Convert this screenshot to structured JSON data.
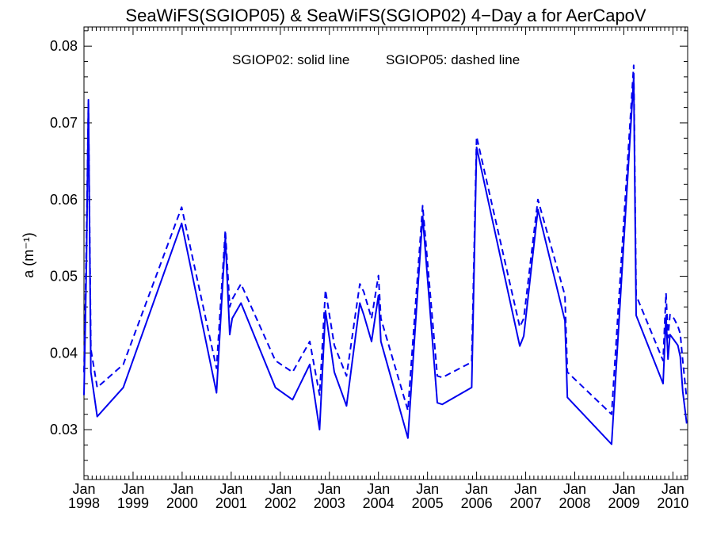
{
  "chart_data": {
    "type": "line",
    "title": "SeaWiFS(SGIOP05) & SeaWiFS(SGIOP02) 4−Day a for AerCapoV",
    "annotation_left": "SGIOP02: solid line",
    "annotation_right": "SGIOP05: dashed line",
    "ylabel": "a (m⁻¹)",
    "xlabel": "",
    "x_range": [
      1998.0,
      2010.3
    ],
    "ylim": [
      0.0235,
      0.0825
    ],
    "y_ticks": [
      0.03,
      0.04,
      0.05,
      0.06,
      0.07,
      0.08
    ],
    "y_tick_labels": [
      "0.03",
      "0.04",
      "0.05",
      "0.06",
      "0.07",
      "0.08"
    ],
    "x_ticks": [
      {
        "x": 1998.0,
        "month": "Jan",
        "year": "1998"
      },
      {
        "x": 1999.0,
        "month": "Jan",
        "year": "1999"
      },
      {
        "x": 2000.0,
        "month": "Jan",
        "year": "2000"
      },
      {
        "x": 2001.0,
        "month": "Jan",
        "year": "2001"
      },
      {
        "x": 2002.0,
        "month": "Jan",
        "year": "2002"
      },
      {
        "x": 2003.0,
        "month": "Jan",
        "year": "2003"
      },
      {
        "x": 2004.0,
        "month": "Jan",
        "year": "2004"
      },
      {
        "x": 2005.0,
        "month": "Jan",
        "year": "2005"
      },
      {
        "x": 2006.0,
        "month": "Jan",
        "year": "2006"
      },
      {
        "x": 2007.0,
        "month": "Jan",
        "year": "2007"
      },
      {
        "x": 2008.0,
        "month": "Jan",
        "year": "2008"
      },
      {
        "x": 2009.0,
        "month": "Jan",
        "year": "2009"
      },
      {
        "x": 2010.0,
        "month": "Jan",
        "year": "2010"
      }
    ],
    "grid": false,
    "series_color": "#0000ee",
    "series": [
      {
        "name": "SGIOP02",
        "style": "solid",
        "x": [
          1998.0,
          1998.05,
          1998.09,
          1998.14,
          1998.27,
          1998.8,
          1999.99,
          2000.7,
          2000.88,
          2000.97,
          2001.02,
          2001.2,
          2001.9,
          2002.25,
          2002.6,
          2002.8,
          2002.92,
          2003.1,
          2003.35,
          2003.62,
          2003.7,
          2003.86,
          2004.0,
          2004.05,
          2004.6,
          2004.9,
          2005.2,
          2005.3,
          2005.9,
          2006.0,
          2006.88,
          2006.96,
          2007.25,
          2007.8,
          2007.85,
          2008.75,
          2009.2,
          2009.25,
          2009.8,
          2009.86,
          2009.9,
          2009.94,
          2010.02,
          2010.1,
          2010.15,
          2010.2,
          2010.28
        ],
        "y": [
          0.0345,
          0.0515,
          0.073,
          0.0375,
          0.0317,
          0.0355,
          0.0569,
          0.0348,
          0.055,
          0.0424,
          0.0445,
          0.0465,
          0.0355,
          0.0339,
          0.0385,
          0.03,
          0.0455,
          0.0375,
          0.0331,
          0.0465,
          0.045,
          0.0415,
          0.0475,
          0.0415,
          0.0289,
          0.0578,
          0.0335,
          0.0333,
          0.0355,
          0.0668,
          0.0409,
          0.0422,
          0.0587,
          0.0442,
          0.0342,
          0.0281,
          0.0759,
          0.0449,
          0.036,
          0.0449,
          0.0392,
          0.0424,
          0.0417,
          0.041,
          0.0395,
          0.035,
          0.0308
        ]
      },
      {
        "name": "SGIOP05",
        "style": "dashed",
        "x": [
          1998.0,
          1998.05,
          1998.09,
          1998.14,
          1998.27,
          1998.8,
          1999.99,
          2000.7,
          2000.88,
          2000.97,
          2001.02,
          2001.2,
          2001.9,
          2002.25,
          2002.6,
          2002.8,
          2002.92,
          2003.1,
          2003.35,
          2003.62,
          2003.7,
          2003.86,
          2004.0,
          2004.05,
          2004.6,
          2004.9,
          2005.2,
          2005.3,
          2005.9,
          2006.0,
          2006.88,
          2006.96,
          2007.25,
          2007.8,
          2007.85,
          2008.75,
          2009.2,
          2009.25,
          2009.8,
          2009.86,
          2009.9,
          2009.94,
          2010.02,
          2010.1,
          2010.15,
          2010.2,
          2010.28
        ],
        "y": [
          0.0375,
          0.0545,
          0.0725,
          0.0405,
          0.0355,
          0.0385,
          0.059,
          0.038,
          0.056,
          0.046,
          0.047,
          0.049,
          0.039,
          0.0375,
          0.0415,
          0.0345,
          0.0482,
          0.041,
          0.037,
          0.049,
          0.048,
          0.0445,
          0.0501,
          0.0445,
          0.0325,
          0.0592,
          0.037,
          0.0368,
          0.0388,
          0.0682,
          0.0434,
          0.0445,
          0.06,
          0.0475,
          0.0375,
          0.032,
          0.0775,
          0.0475,
          0.039,
          0.0478,
          0.042,
          0.045,
          0.0445,
          0.0435,
          0.0425,
          0.039,
          0.034
        ]
      }
    ]
  }
}
